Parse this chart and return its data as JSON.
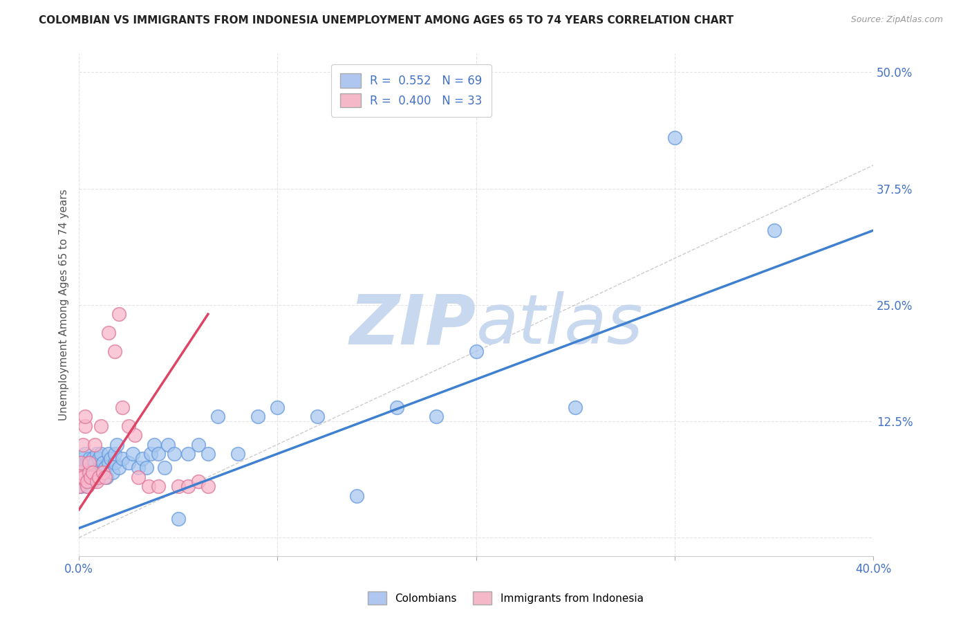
{
  "title": "COLOMBIAN VS IMMIGRANTS FROM INDONESIA UNEMPLOYMENT AMONG AGES 65 TO 74 YEARS CORRELATION CHART",
  "source": "Source: ZipAtlas.com",
  "ylabel": "Unemployment Among Ages 65 to 74 years",
  "xlim": [
    0,
    0.4
  ],
  "ylim": [
    -0.02,
    0.52
  ],
  "xticks": [
    0.0,
    0.1,
    0.2,
    0.3,
    0.4
  ],
  "xtick_labels_show": [
    "0.0%",
    "",
    "",
    "",
    "40.0%"
  ],
  "yticks": [
    0.0,
    0.125,
    0.25,
    0.375,
    0.5
  ],
  "ytick_labels": [
    "",
    "12.5%",
    "25.0%",
    "37.5%",
    "50.0%"
  ],
  "blue_scatter_x": [
    0.0,
    0.0,
    0.001,
    0.001,
    0.001,
    0.002,
    0.002,
    0.002,
    0.003,
    0.003,
    0.003,
    0.004,
    0.004,
    0.004,
    0.005,
    0.005,
    0.005,
    0.006,
    0.006,
    0.007,
    0.007,
    0.007,
    0.008,
    0.008,
    0.009,
    0.009,
    0.01,
    0.01,
    0.011,
    0.011,
    0.012,
    0.013,
    0.014,
    0.015,
    0.015,
    0.016,
    0.017,
    0.018,
    0.018,
    0.019,
    0.02,
    0.022,
    0.025,
    0.027,
    0.03,
    0.032,
    0.034,
    0.036,
    0.038,
    0.04,
    0.043,
    0.045,
    0.048,
    0.05,
    0.055,
    0.06,
    0.065,
    0.07,
    0.08,
    0.09,
    0.1,
    0.12,
    0.14,
    0.16,
    0.18,
    0.2,
    0.25,
    0.3,
    0.35
  ],
  "blue_scatter_y": [
    0.06,
    0.065,
    0.07,
    0.055,
    0.08,
    0.065,
    0.075,
    0.085,
    0.06,
    0.08,
    0.09,
    0.055,
    0.07,
    0.08,
    0.065,
    0.075,
    0.085,
    0.07,
    0.08,
    0.06,
    0.075,
    0.085,
    0.07,
    0.08,
    0.065,
    0.09,
    0.075,
    0.085,
    0.07,
    0.09,
    0.08,
    0.075,
    0.065,
    0.08,
    0.09,
    0.085,
    0.07,
    0.08,
    0.09,
    0.1,
    0.075,
    0.085,
    0.08,
    0.09,
    0.075,
    0.085,
    0.075,
    0.09,
    0.1,
    0.09,
    0.075,
    0.1,
    0.09,
    0.02,
    0.09,
    0.1,
    0.09,
    0.13,
    0.09,
    0.13,
    0.14,
    0.13,
    0.045,
    0.14,
    0.13,
    0.2,
    0.14,
    0.43,
    0.33
  ],
  "pink_scatter_x": [
    0.0,
    0.0,
    0.001,
    0.001,
    0.002,
    0.002,
    0.003,
    0.003,
    0.004,
    0.004,
    0.005,
    0.005,
    0.006,
    0.007,
    0.008,
    0.009,
    0.01,
    0.011,
    0.012,
    0.013,
    0.015,
    0.018,
    0.02,
    0.022,
    0.025,
    0.028,
    0.03,
    0.035,
    0.04,
    0.05,
    0.055,
    0.06,
    0.065
  ],
  "pink_scatter_y": [
    0.055,
    0.065,
    0.07,
    0.08,
    0.065,
    0.1,
    0.12,
    0.13,
    0.055,
    0.06,
    0.07,
    0.08,
    0.065,
    0.07,
    0.1,
    0.06,
    0.065,
    0.12,
    0.07,
    0.065,
    0.22,
    0.2,
    0.24,
    0.14,
    0.12,
    0.11,
    0.065,
    0.055,
    0.055,
    0.055,
    0.055,
    0.06,
    0.055
  ],
  "blue_line_x": [
    0.0,
    0.4
  ],
  "blue_line_y": [
    0.01,
    0.33
  ],
  "pink_line_x": [
    0.0,
    0.065
  ],
  "pink_line_y": [
    0.03,
    0.24
  ],
  "blue_scatter_color": "#a8c8f0",
  "blue_scatter_edge": "#6699dd",
  "pink_scatter_color": "#f8b8cc",
  "pink_scatter_edge": "#dd7799",
  "blue_line_color": "#4080d0",
  "pink_line_color": "#dd4466",
  "diag_line_color": "#c0c0c0",
  "watermark_zip_color": "#c8d8ee",
  "watermark_atlas_color": "#c8d8ee",
  "background_color": "#ffffff",
  "grid_color": "#d8d8d8",
  "legend_box_color": "#aec6f0",
  "legend_pink_color": "#f4b8c8",
  "axis_color": "#4472c4"
}
